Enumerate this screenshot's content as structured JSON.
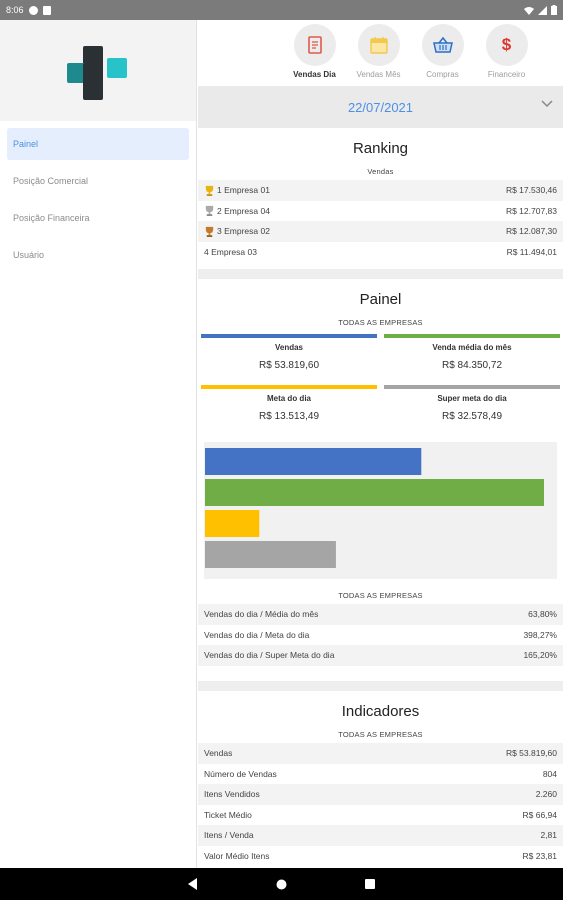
{
  "status_bar": {
    "time": "8:06"
  },
  "sidebar": {
    "items": [
      {
        "label": "Painel",
        "active": true
      },
      {
        "label": "Posição Comercial",
        "active": false
      },
      {
        "label": "Posição Financeira",
        "active": false
      },
      {
        "label": "Usuário",
        "active": false
      }
    ]
  },
  "tabs": [
    {
      "label": "Vendas Dia",
      "icon": "receipt-icon",
      "active": true
    },
    {
      "label": "Vendas Mês",
      "icon": "calendar-icon",
      "active": false
    },
    {
      "label": "Compras",
      "icon": "basket-icon",
      "active": false
    },
    {
      "label": "Financeiro",
      "icon": "dollar-icon",
      "active": false
    }
  ],
  "date": "22/07/2021",
  "ranking": {
    "title": "Ranking",
    "subtitle": "Vendas",
    "rows": [
      {
        "label": "1 Empresa 01",
        "value": "R$ 17.530,46",
        "trophy": "gold"
      },
      {
        "label": "2 Empresa 04",
        "value": "R$ 12.707,83",
        "trophy": "silver"
      },
      {
        "label": "3 Empresa 02",
        "value": "R$ 12.087,30",
        "trophy": "bronze"
      },
      {
        "label": "4 Empresa 03",
        "value": "R$ 11.494,01",
        "trophy": ""
      }
    ]
  },
  "painel": {
    "title": "Painel",
    "subtitle": "TODAS AS EMPRESAS",
    "kpis": [
      {
        "label": "Vendas",
        "value": "R$ 53.819,60",
        "color": "#4472c4"
      },
      {
        "label": "Venda média do mês",
        "value": "R$ 84.350,72",
        "color": "#70ad47"
      },
      {
        "label": "Meta do dia",
        "value": "R$ 13.513,49",
        "color": "#ffc000"
      },
      {
        "label": "Super meta do dia",
        "value": "R$ 32.578,49",
        "color": "#a5a5a5"
      }
    ],
    "subtitle2": "TODAS AS EMPRESAS",
    "ratios": [
      {
        "label": "Vendas do dia / Média do mês",
        "value": "63,80%"
      },
      {
        "label": "Vendas do dia / Meta do dia",
        "value": "398,27%"
      },
      {
        "label": "Vendas do dia / Super Meta do dia",
        "value": "165,20%"
      }
    ]
  },
  "chart_data": {
    "type": "bar",
    "orientation": "horizontal",
    "categories": [
      "Vendas",
      "Venda média do mês",
      "Meta do dia",
      "Super meta do dia"
    ],
    "values": [
      53819.6,
      84350.72,
      13513.49,
      32578.49
    ],
    "colors": [
      "#4472c4",
      "#70ad47",
      "#ffc000",
      "#a5a5a5"
    ],
    "xlim": [
      0,
      84350.72
    ],
    "grid": false
  },
  "indicadores": {
    "title": "Indicadores",
    "subtitle": "TODAS AS EMPRESAS",
    "rows": [
      {
        "label": "Vendas",
        "value": "R$ 53.819,60"
      },
      {
        "label": "Número de Vendas",
        "value": "804"
      },
      {
        "label": "Itens Vendidos",
        "value": "2.260"
      },
      {
        "label": "Ticket Médio",
        "value": "R$ 66,94"
      },
      {
        "label": "Itens / Venda",
        "value": "2,81"
      },
      {
        "label": "Valor Médio Itens",
        "value": "R$ 23,81"
      }
    ]
  }
}
